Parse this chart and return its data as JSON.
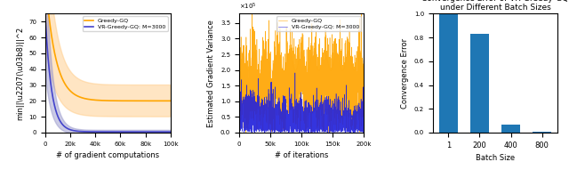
{
  "plot1": {
    "title": "",
    "xlabel": "# of gradient computations",
    "ylabel": "min||\\u2207(\\u03b8)||^2",
    "xlim": [
      0,
      100000
    ],
    "ylim": [
      0,
      75
    ],
    "yticks": [
      0,
      10,
      20,
      30,
      40,
      50,
      60,
      70
    ],
    "xtick_labels": [
      "0",
      "20k",
      "40k",
      "60k",
      "80k",
      "100k"
    ],
    "xtick_vals": [
      0,
      20000,
      40000,
      60000,
      80000,
      100000
    ],
    "greedy_color": "#FFA500",
    "vr_color": "#4444CC",
    "greedy_fill_color": "#FFCC88",
    "vr_fill_color": "#9999CC",
    "legend_labels": [
      "Greedy-GQ",
      "VR-Greedy-GQ: M=3000"
    ]
  },
  "plot2": {
    "title": "",
    "xlabel": "# of iterations",
    "ylabel": "Estimated Gradient Variance",
    "xlim": [
      0,
      200000
    ],
    "ylim": [
      0,
      380000
    ],
    "ytick_labels": [
      "0.0",
      "0.5",
      "1.0",
      "1.5",
      "2.0",
      "2.5",
      "3.0",
      "3.5"
    ],
    "ytick_vals": [
      0,
      50000,
      100000,
      150000,
      200000,
      250000,
      300000,
      350000
    ],
    "xtick_labels": [
      "0",
      "50k",
      "100k",
      "150k",
      "200k"
    ],
    "xtick_vals": [
      0,
      50000,
      100000,
      150000,
      200000
    ],
    "greedy_color": "#FFA500",
    "vr_color": "#2222DD",
    "greedy_fill_color": "#FFCC88",
    "vr_fill_color": "#8888CC",
    "legend_labels": [
      "Greedy-GQ",
      "VR-Greedy-GQ: M=3000"
    ]
  },
  "plot3": {
    "title": "Convergence Error of VR-Greedy-GQ\nunder Different Batch Sizes",
    "xlabel": "Batch Size",
    "ylabel": "Convergence Error",
    "categories": [
      "1",
      "200",
      "400",
      "800"
    ],
    "values": [
      1.0,
      0.83,
      0.065,
      0.008
    ],
    "bar_color": "#1f77b4",
    "ylim": [
      0,
      1.0
    ],
    "yticks": [
      0.0,
      0.2,
      0.4,
      0.6,
      0.8,
      1.0
    ]
  }
}
